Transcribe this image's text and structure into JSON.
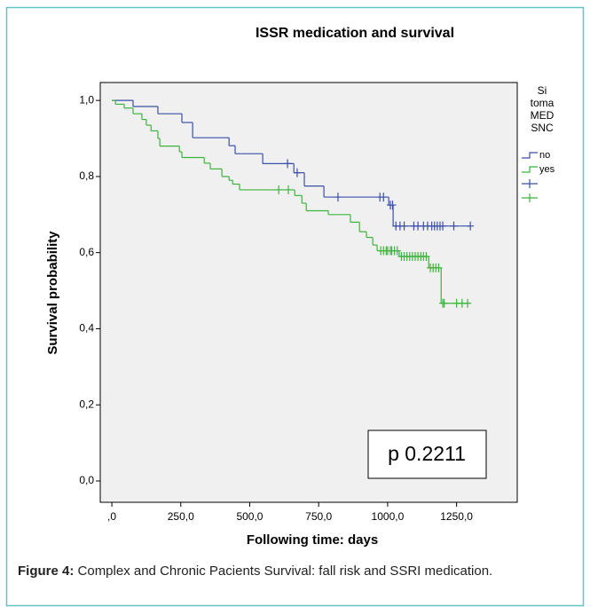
{
  "chart_data": {
    "type": "km",
    "title": "ISSR medication and survival",
    "xlabel": "Following time: days",
    "ylabel": "Survival probability",
    "legend_title": [
      "Si",
      "toma",
      "MED",
      "SNC"
    ],
    "annotation": "p 0.2211",
    "xlim": [
      -42,
      1470
    ],
    "ylim": [
      -0.056,
      1.047
    ],
    "xticks": [
      {
        "value": 0,
        "label": ",0"
      },
      {
        "value": 250,
        "label": "250,0"
      },
      {
        "value": 500,
        "label": "500,0"
      },
      {
        "value": 750,
        "label": "750,0"
      },
      {
        "value": 1000,
        "label": "1000,0"
      },
      {
        "value": 1250,
        "label": "1250,0"
      }
    ],
    "yticks": [
      {
        "value": 0,
        "label": "0,0"
      },
      {
        "value": 0.2,
        "label": "0,2"
      },
      {
        "value": 0.4,
        "label": "0,4"
      },
      {
        "value": 0.6,
        "label": "0,6"
      },
      {
        "value": 0.8,
        "label": "0,8"
      },
      {
        "value": 1,
        "label": "1,0"
      }
    ],
    "series": [
      {
        "name": "no",
        "color": "#3b4fa6",
        "x": [
          0,
          77,
          167,
          254,
          293,
          425,
          447,
          547,
          660,
          698,
          769,
          1004,
          1020
        ],
        "values": [
          1,
          0.984,
          0.965,
          0.942,
          0.902,
          0.881,
          0.86,
          0.834,
          0.81,
          0.775,
          0.746,
          0.725,
          0.67
        ],
        "censored_x": [
          637,
          672,
          820,
          972,
          985,
          1010,
          1018,
          1030,
          1045,
          1060,
          1095,
          1110,
          1130,
          1145,
          1160,
          1170,
          1180,
          1190,
          1200,
          1240,
          1300
        ],
        "censored_values": [
          0.834,
          0.81,
          0.746,
          0.746,
          0.746,
          0.725,
          0.725,
          0.67,
          0.67,
          0.67,
          0.67,
          0.67,
          0.67,
          0.67,
          0.67,
          0.67,
          0.67,
          0.67,
          0.67,
          0.67,
          0.67
        ]
      },
      {
        "name": "yes",
        "color": "#3cb43c",
        "x": [
          0,
          13,
          45,
          77,
          109,
          125,
          142,
          167,
          174,
          245,
          254,
          335,
          357,
          399,
          425,
          438,
          463,
          663,
          689,
          705,
          785,
          865,
          898,
          923,
          946,
          962,
          1042,
          1149,
          1194
        ],
        "values": [
          1,
          0.99,
          0.98,
          0.965,
          0.95,
          0.935,
          0.92,
          0.9,
          0.88,
          0.865,
          0.85,
          0.835,
          0.82,
          0.8,
          0.79,
          0.78,
          0.765,
          0.75,
          0.73,
          0.71,
          0.7,
          0.68,
          0.655,
          0.64,
          0.62,
          0.605,
          0.59,
          0.56,
          0.467
        ],
        "censored_x": [
          605,
          640,
          975,
          985,
          995,
          1000,
          1010,
          1015,
          1025,
          1035,
          1050,
          1060,
          1070,
          1080,
          1090,
          1100,
          1110,
          1120,
          1130,
          1140,
          1155,
          1165,
          1175,
          1185,
          1200,
          1205,
          1250,
          1270,
          1290
        ],
        "censored_values": [
          0.765,
          0.765,
          0.605,
          0.605,
          0.605,
          0.605,
          0.605,
          0.605,
          0.605,
          0.605,
          0.59,
          0.59,
          0.59,
          0.59,
          0.59,
          0.59,
          0.59,
          0.59,
          0.59,
          0.59,
          0.56,
          0.56,
          0.56,
          0.56,
          0.467,
          0.467,
          0.467,
          0.467,
          0.467
        ]
      }
    ]
  },
  "caption": {
    "label": "Figure 4:",
    "text": "Complex and Chronic Pacients Survival: fall risk and SSRI medication."
  }
}
